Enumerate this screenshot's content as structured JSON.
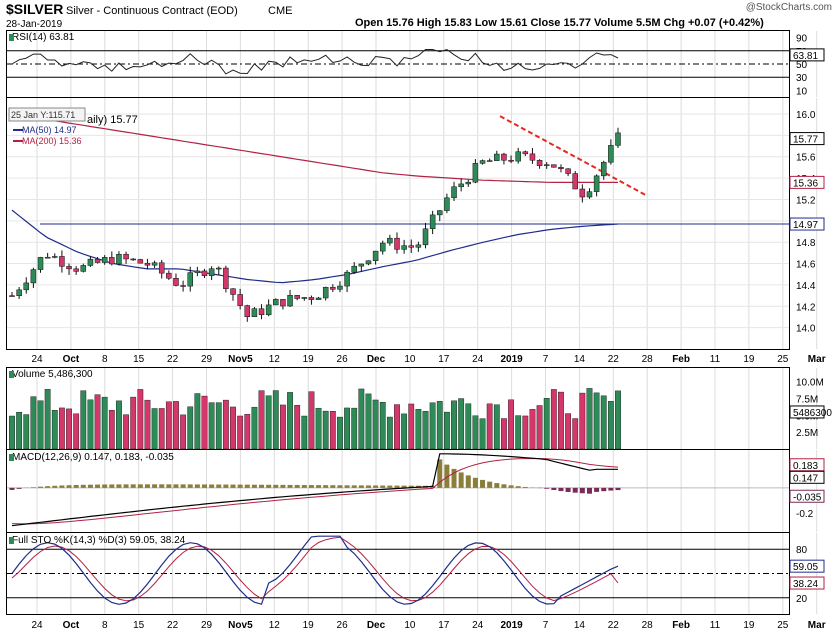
{
  "header": {
    "symbol": "$SILVER",
    "name": "Silver - Continuous Contract (EOD)",
    "exchange": "CME",
    "date": "28-Jan-2019",
    "watermark": "@StockCharts.com",
    "quote": "Open 15.76  High 15.83  Low 15.61  Close 15.77  Volume 5.5M  Chg +0.07 (+0.42%)"
  },
  "colors": {
    "up": "#2e8b57",
    "down": "#d4376a",
    "ma50": "#1f2d8c",
    "ma200": "#b22244",
    "trendline": "#e8281e",
    "hline": "#1f2d8c",
    "rsi": "#222222",
    "macd": "#000000",
    "signal": "#b22244",
    "hist": "#8b7d3a",
    "histneg": "#7a2a55"
  },
  "panels": {
    "rsi": {
      "label": "RSI(14) 63.81",
      "ticks": [
        "90",
        "70",
        "50",
        "30",
        "10"
      ],
      "last": "63.81"
    },
    "price": {
      "legend_main": "aily) 15.77",
      "tooltip": "25 Jan Y:115.71",
      "ma50_label": "MA(50) 14.97",
      "ma200_label": "MA(200) 15.36",
      "ticks": [
        "16.0",
        "15.8",
        "15.6",
        "15.4",
        "15.2",
        "15.0",
        "14.8",
        "14.6",
        "14.4",
        "14.2",
        "14.0"
      ],
      "tags": {
        "close": "15.77",
        "ma200": "15.36",
        "ma50": "14.97"
      }
    },
    "volume": {
      "label": "Volume 5,486,300",
      "ticks": [
        "10.0M",
        "7.5M",
        "5.0M",
        "2.5M"
      ],
      "last": "5486300"
    },
    "macd": {
      "label": "MACD(12,26,9) 0.147, 0.183, -0.035",
      "ticks": [
        "0.2",
        "-0.2"
      ],
      "tags": [
        "0.183",
        "0.147",
        "-0.035"
      ]
    },
    "sto": {
      "label": "Full STO %K(14,3) %D(3) 59.05, 38.24",
      "ticks": [
        "80",
        "20"
      ],
      "tags": [
        "59.05",
        "38.24"
      ]
    }
  },
  "xaxis": [
    "24",
    "Oct",
    "8",
    "15",
    "22",
    "29",
    "Nov5",
    "12",
    "19",
    "26",
    "Dec",
    "10",
    "17",
    "24",
    "2019",
    "7",
    "14",
    "22",
    "28",
    "Feb",
    "11",
    "19",
    "25",
    "Mar"
  ],
  "chart_data": {
    "type": "candlestick",
    "title": "$SILVER Silver - Continuous Contract (EOD)",
    "x": [
      "Sep 24",
      "Oct 1",
      "Oct 8",
      "Oct 15",
      "Oct 22",
      "Oct 29",
      "Nov 5",
      "Nov 12",
      "Nov 19",
      "Nov 26",
      "Dec 3",
      "Dec 10",
      "Dec 17",
      "Dec 24",
      "Jan 2",
      "Jan 7",
      "Jan 14",
      "Jan 22",
      "Jan 28"
    ],
    "close": [
      14.3,
      14.7,
      14.55,
      14.65,
      14.6,
      14.4,
      14.6,
      14.1,
      14.25,
      14.3,
      14.5,
      14.8,
      14.75,
      15.25,
      15.55,
      15.6,
      15.55,
      15.25,
      15.77
    ],
    "ma50": [
      15.1,
      14.85,
      14.7,
      14.6,
      14.55,
      14.55,
      14.5,
      14.45,
      14.42,
      14.45,
      14.5,
      14.57,
      14.63,
      14.72,
      14.8,
      14.87,
      14.92,
      14.95,
      14.97
    ],
    "ma200": [
      16.0,
      15.95,
      15.9,
      15.85,
      15.8,
      15.75,
      15.7,
      15.65,
      15.6,
      15.55,
      15.5,
      15.45,
      15.42,
      15.4,
      15.38,
      15.37,
      15.36,
      15.36,
      15.36
    ],
    "horizontal_line": 14.97,
    "ylim": [
      13.8,
      16.15
    ]
  }
}
